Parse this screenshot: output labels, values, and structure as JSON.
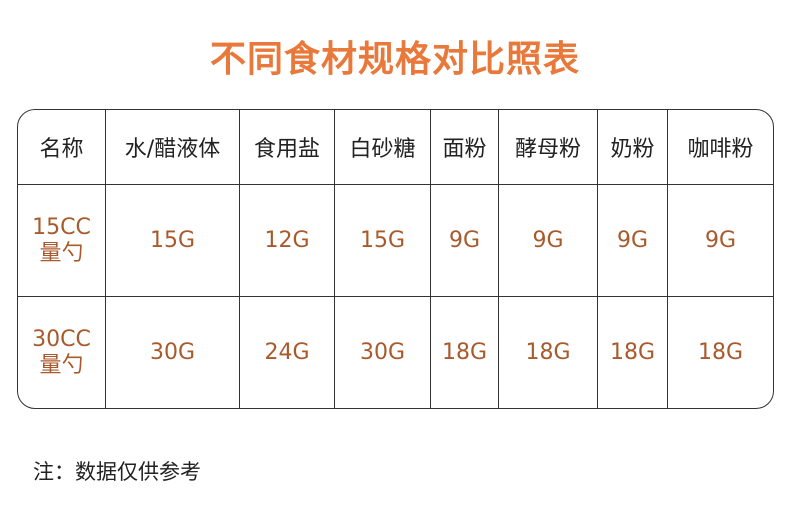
{
  "title": "不同食材规格对比照表",
  "colors": {
    "title": "#e8793a",
    "values": "#a85a2c"
  },
  "table": {
    "headers": [
      "名称",
      "水/醋液体",
      "食用盐",
      "白砂糖",
      "面粉",
      "酵母粉",
      "奶粉",
      "咖啡粉"
    ],
    "rows": [
      {
        "name": [
          "15CC",
          "量勺"
        ],
        "values": [
          "15G",
          "12G",
          "15G",
          "9G",
          "9G",
          "9G",
          "9G"
        ]
      },
      {
        "name": [
          "30CC",
          "量勺"
        ],
        "values": [
          "30G",
          "24G",
          "30G",
          "18G",
          "18G",
          "18G",
          "18G"
        ]
      }
    ]
  },
  "note": "注：数据仅供参考"
}
